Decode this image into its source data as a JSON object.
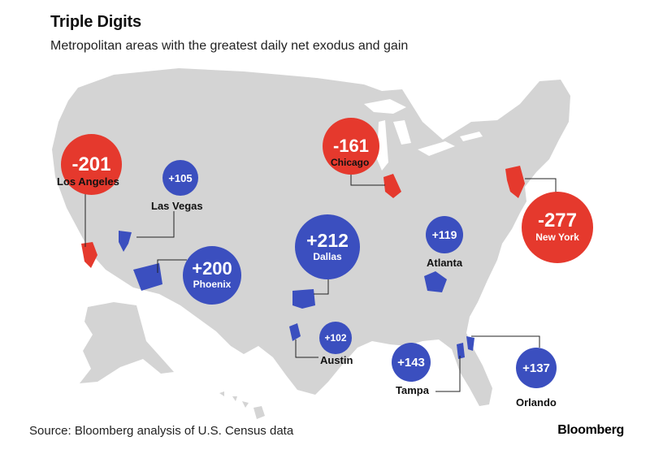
{
  "header": {
    "title": "Triple Digits",
    "subtitle": "Metropolitan areas with the greatest daily net exodus and gain"
  },
  "footer": {
    "source": "Source: Bloomberg analysis of U.S. Census data",
    "brand": "Bloomberg"
  },
  "colors": {
    "loss": "#e5392d",
    "gain": "#3b4fbf",
    "land": "#d4d4d4"
  },
  "metros": [
    {
      "name": "Los Angeles",
      "value": "-201",
      "type": "loss"
    },
    {
      "name": "Las Vegas",
      "value": "+105",
      "type": "gain"
    },
    {
      "name": "Phoenix",
      "value": "+200",
      "type": "gain"
    },
    {
      "name": "Dallas",
      "value": "+212",
      "type": "gain"
    },
    {
      "name": "Austin",
      "value": "+102",
      "type": "gain"
    },
    {
      "name": "Chicago",
      "value": "-161",
      "type": "loss"
    },
    {
      "name": "Atlanta",
      "value": "+119",
      "type": "gain"
    },
    {
      "name": "Tampa",
      "value": "+143",
      "type": "gain"
    },
    {
      "name": "Orlando",
      "value": "+137",
      "type": "gain"
    },
    {
      "name": "New York",
      "value": "-277",
      "type": "loss"
    }
  ]
}
